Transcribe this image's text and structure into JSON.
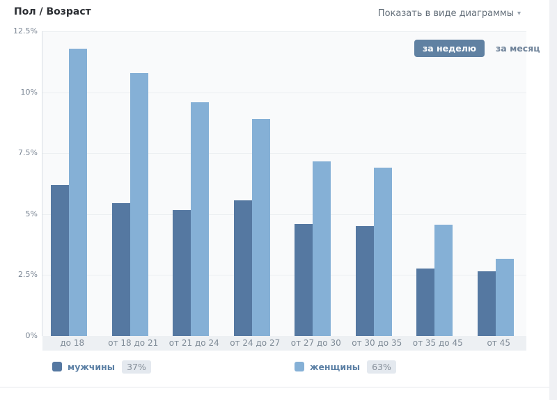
{
  "header": {
    "title": "Пол / Возраст",
    "view_selector_label": "Показать в виде диаграммы",
    "view_selector_arrow": "▾"
  },
  "period_toggle": {
    "options": [
      {
        "label": "за неделю",
        "active": true
      },
      {
        "label": "за месяц",
        "active": false
      }
    ]
  },
  "chart_data": {
    "type": "bar",
    "title": "Пол / Возраст",
    "categories": [
      "до 18",
      "от 18 до 21",
      "от 21 до 24",
      "от 24 до 27",
      "от 27 до 30",
      "от 30 до 35",
      "от 35 до 45",
      "от 45"
    ],
    "series": [
      {
        "name": "мужчины",
        "share": "37%",
        "color": "#5578a1",
        "values": [
          6.2,
          5.45,
          5.15,
          5.55,
          4.6,
          4.5,
          2.75,
          2.65
        ]
      },
      {
        "name": "женщины",
        "share": "63%",
        "color": "#85b0d6",
        "values": [
          11.8,
          10.8,
          9.6,
          8.9,
          7.15,
          6.9,
          4.55,
          3.15
        ]
      }
    ],
    "xlabel": "",
    "ylabel": "",
    "ylim": [
      0,
      12.5
    ],
    "yticks": [
      "12.5%",
      "10%",
      "7.5%",
      "5%",
      "2.5%",
      "0%"
    ],
    "grid": true,
    "legend_position": "bottom"
  },
  "colors": {
    "men_bar": "#5578a1",
    "women_bar": "#85b0d6",
    "active_button_bg": "#6081a2",
    "plot_background": "#f9fafb",
    "axis_strip": "#edf0f3",
    "gridline": "#eceff1"
  }
}
